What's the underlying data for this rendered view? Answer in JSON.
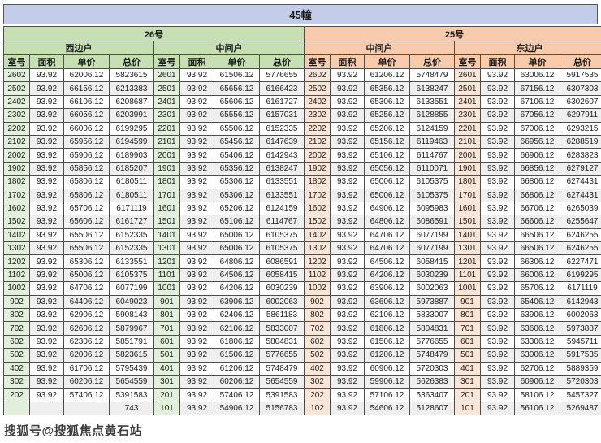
{
  "title": "45幢",
  "watermark": {
    "text": "搜狐号@搜狐焦点黄石站"
  },
  "columns": [
    "室号",
    "面积",
    "单价",
    "总价"
  ],
  "colors": {
    "title_band": "#c3cde9",
    "section_26": "#c6e0b4",
    "section_25": "#f8cbad",
    "room_tint_26": "#e2efda",
    "room_tint_25": "#fbe5d6",
    "alt_row": "#efefef",
    "border": "#4d4d4d"
  },
  "sections": [
    {
      "label": "26号",
      "header_color": "#c6e0b4",
      "room_tint": "#e2efda",
      "units": [
        {
          "label": "西边户",
          "rows": [
            [
              "2602",
              "93.92",
              "62006.12",
              "5823615"
            ],
            [
              "2502",
              "93.92",
              "66156.12",
              "6213383"
            ],
            [
              "2402",
              "93.92",
              "66106.12",
              "6208687"
            ],
            [
              "2302",
              "93.92",
              "66056.12",
              "6203991"
            ],
            [
              "2202",
              "93.92",
              "66006.12",
              "6199295"
            ],
            [
              "2102",
              "93.92",
              "65956.12",
              "6194599"
            ],
            [
              "2002",
              "93.92",
              "65906.12",
              "6189903"
            ],
            [
              "1902",
              "93.92",
              "65856.12",
              "6185207"
            ],
            [
              "1802",
              "93.92",
              "65806.12",
              "6180511"
            ],
            [
              "1702",
              "93.92",
              "65806.12",
              "6180511"
            ],
            [
              "1602",
              "93.92",
              "65706.12",
              "6171119"
            ],
            [
              "1502",
              "93.92",
              "65606.12",
              "6161727"
            ],
            [
              "1402",
              "93.92",
              "65506.12",
              "6152335"
            ],
            [
              "1302",
              "93.92",
              "65506.12",
              "6152335"
            ],
            [
              "1202",
              "93.92",
              "65306.12",
              "6133551"
            ],
            [
              "1102",
              "93.92",
              "65006.12",
              "6105375"
            ],
            [
              "1002",
              "93.92",
              "64706.12",
              "6077199"
            ],
            [
              "902",
              "93.92",
              "64406.12",
              "6049023"
            ],
            [
              "802",
              "93.92",
              "62906.12",
              "5908143"
            ],
            [
              "702",
              "93.92",
              "62606.12",
              "5879967"
            ],
            [
              "602",
              "93.92",
              "62306.12",
              "5851791"
            ],
            [
              "502",
              "93.92",
              "62006.12",
              "5823615"
            ],
            [
              "402",
              "93.92",
              "61706.12",
              "5795439"
            ],
            [
              "302",
              "93.92",
              "60206.12",
              "5654559"
            ],
            [
              "202",
              "93.92",
              "57406.12",
              "5391583"
            ],
            [
              "",
              "",
              "",
              "743"
            ]
          ]
        },
        {
          "label": "中间户",
          "rows": [
            [
              "2601",
              "93.92",
              "61506.12",
              "5776655"
            ],
            [
              "2501",
              "93.92",
              "65656.12",
              "6166423"
            ],
            [
              "2401",
              "93.92",
              "65606.12",
              "6161727"
            ],
            [
              "2301",
              "93.92",
              "65556.12",
              "6157031"
            ],
            [
              "2201",
              "93.92",
              "65506.12",
              "6152335"
            ],
            [
              "2101",
              "93.92",
              "65456.12",
              "6147639"
            ],
            [
              "2001",
              "93.92",
              "65406.12",
              "6142943"
            ],
            [
              "1901",
              "93.92",
              "65356.12",
              "6138247"
            ],
            [
              "1801",
              "93.92",
              "65306.12",
              "6133551"
            ],
            [
              "1701",
              "93.92",
              "65306.12",
              "6133551"
            ],
            [
              "1601",
              "93.92",
              "65206.12",
              "6124159"
            ],
            [
              "1501",
              "93.92",
              "65106.12",
              "6114767"
            ],
            [
              "1401",
              "93.92",
              "65006.12",
              "6105375"
            ],
            [
              "1301",
              "93.92",
              "65006.12",
              "6105375"
            ],
            [
              "1201",
              "93.92",
              "64806.12",
              "6086591"
            ],
            [
              "1101",
              "93.92",
              "64506.12",
              "6058415"
            ],
            [
              "1001",
              "93.92",
              "64206.12",
              "6030239"
            ],
            [
              "901",
              "93.92",
              "63906.12",
              "6002063"
            ],
            [
              "801",
              "93.92",
              "62406.12",
              "5861183"
            ],
            [
              "701",
              "93.92",
              "62106.12",
              "5833007"
            ],
            [
              "601",
              "93.92",
              "61806.12",
              "5804831"
            ],
            [
              "501",
              "93.92",
              "61506.12",
              "5776655"
            ],
            [
              "401",
              "93.92",
              "61206.12",
              "5748479"
            ],
            [
              "301",
              "93.92",
              "60206.12",
              "5654559"
            ],
            [
              "201",
              "93.92",
              "57406.12",
              "5391583"
            ],
            [
              "101",
              "93.92",
              "54906.12",
              "5156783"
            ]
          ]
        }
      ]
    },
    {
      "label": "25号",
      "header_color": "#f8cbad",
      "room_tint": "#fbe5d6",
      "units": [
        {
          "label": "中间户",
          "rows": [
            [
              "2602",
              "93.92",
              "61206.12",
              "5748479"
            ],
            [
              "2502",
              "93.92",
              "65356.12",
              "6138247"
            ],
            [
              "2402",
              "93.92",
              "65306.12",
              "6133551"
            ],
            [
              "2302",
              "93.92",
              "65256.12",
              "6128855"
            ],
            [
              "2202",
              "93.92",
              "65206.12",
              "6124159"
            ],
            [
              "2102",
              "93.92",
              "65156.12",
              "6119463"
            ],
            [
              "2002",
              "93.92",
              "65106.12",
              "6114767"
            ],
            [
              "1902",
              "93.92",
              "65056.12",
              "6110071"
            ],
            [
              "1802",
              "93.92",
              "65006.12",
              "6105375"
            ],
            [
              "1702",
              "93.92",
              "65006.12",
              "6105375"
            ],
            [
              "1602",
              "93.92",
              "64906.12",
              "6095983"
            ],
            [
              "1502",
              "93.92",
              "64806.12",
              "6086591"
            ],
            [
              "1402",
              "93.92",
              "64706.12",
              "6077199"
            ],
            [
              "1302",
              "93.92",
              "64706.12",
              "6077199"
            ],
            [
              "1202",
              "93.92",
              "64506.12",
              "6058415"
            ],
            [
              "1102",
              "93.92",
              "64206.12",
              "6030239"
            ],
            [
              "1002",
              "93.92",
              "63906.12",
              "6002063"
            ],
            [
              "902",
              "93.92",
              "63606.12",
              "5973887"
            ],
            [
              "802",
              "93.92",
              "62106.12",
              "5833007"
            ],
            [
              "702",
              "93.92",
              "61806.12",
              "5804831"
            ],
            [
              "602",
              "93.92",
              "61506.12",
              "5776655"
            ],
            [
              "502",
              "93.92",
              "61206.12",
              "5748479"
            ],
            [
              "402",
              "93.92",
              "60906.12",
              "5720303"
            ],
            [
              "302",
              "93.92",
              "59906.12",
              "5626383"
            ],
            [
              "202",
              "93.92",
              "57106.12",
              "5363407"
            ],
            [
              "102",
              "93.92",
              "54606.12",
              "5128607"
            ]
          ]
        },
        {
          "label": "东边户",
          "rows": [
            [
              "2601",
              "93.92",
              "63006.12",
              "5917535"
            ],
            [
              "2501",
              "93.92",
              "67156.12",
              "6307303"
            ],
            [
              "2401",
              "93.92",
              "67106.12",
              "6302607"
            ],
            [
              "2301",
              "93.92",
              "67056.12",
              "6297911"
            ],
            [
              "2201",
              "93.92",
              "67006.12",
              "6293215"
            ],
            [
              "2101",
              "93.92",
              "66956.12",
              "6288519"
            ],
            [
              "2001",
              "93.92",
              "66906.12",
              "6283823"
            ],
            [
              "1901",
              "93.92",
              "66856.12",
              "6279127"
            ],
            [
              "1801",
              "93.92",
              "66806.12",
              "6274431"
            ],
            [
              "1701",
              "93.92",
              "66806.12",
              "6274431"
            ],
            [
              "1601",
              "93.92",
              "66706.12",
              "6265039"
            ],
            [
              "1501",
              "93.92",
              "66606.12",
              "6255647"
            ],
            [
              "1401",
              "93.92",
              "66506.12",
              "6246255"
            ],
            [
              "1301",
              "93.92",
              "66506.12",
              "6246255"
            ],
            [
              "1201",
              "93.92",
              "66306.12",
              "6227471"
            ],
            [
              "1101",
              "93.92",
              "66006.12",
              "6199295"
            ],
            [
              "1001",
              "93.92",
              "65706.12",
              "6171119"
            ],
            [
              "901",
              "93.92",
              "65406.12",
              "6142943"
            ],
            [
              "801",
              "93.92",
              "63906.12",
              "6002063"
            ],
            [
              "701",
              "93.92",
              "63606.12",
              "5973887"
            ],
            [
              "601",
              "93.92",
              "63306.12",
              "5945711"
            ],
            [
              "501",
              "93.92",
              "63006.12",
              "5917535"
            ],
            [
              "401",
              "93.92",
              "62706.12",
              "5889359"
            ],
            [
              "301",
              "93.92",
              "60906.12",
              "5720303"
            ],
            [
              "201",
              "93.92",
              "58106.12",
              "5457327"
            ],
            [
              "101",
              "93.92",
              "56106.12",
              "5269487"
            ]
          ]
        }
      ]
    }
  ]
}
